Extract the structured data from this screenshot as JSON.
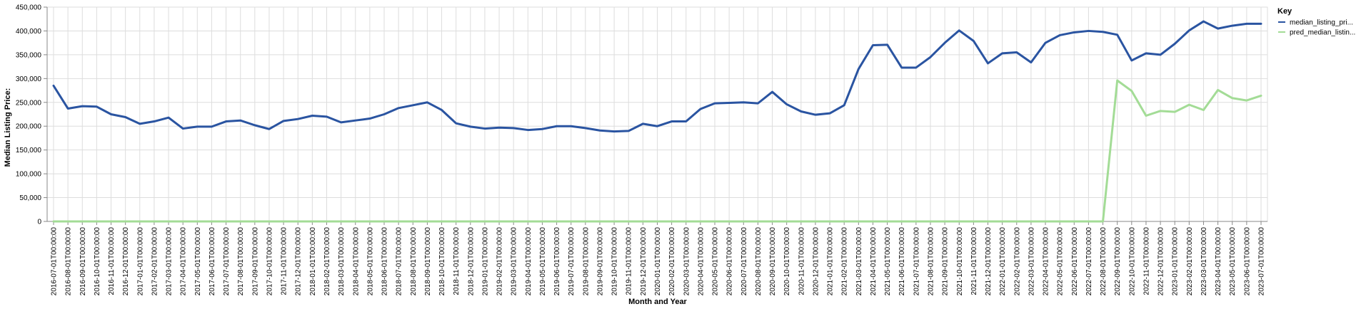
{
  "chart_data": {
    "type": "line",
    "xlabel": "Month and Year",
    "ylabel": "Median Listing Price:",
    "ylim": [
      0,
      450000
    ],
    "yticks": [
      0,
      50000,
      100000,
      150000,
      200000,
      250000,
      300000,
      350000,
      400000,
      450000
    ],
    "ytick_labels": [
      "0",
      "50,000",
      "100,000",
      "150,000",
      "200,000",
      "250,000",
      "300,000",
      "350,000",
      "400,000",
      "450,000"
    ],
    "grid": true,
    "legend": {
      "title": "Key",
      "placement": "top-right"
    },
    "x": [
      "2016-07-01T00:00:00",
      "2016-08-01T00:00:00",
      "2016-09-01T00:00:00",
      "2016-10-01T00:00:00",
      "2016-11-01T00:00:00",
      "2016-12-01T00:00:00",
      "2017-01-01T00:00:00",
      "2017-02-01T00:00:00",
      "2017-03-01T00:00:00",
      "2017-04-01T00:00:00",
      "2017-05-01T00:00:00",
      "2017-06-01T00:00:00",
      "2017-07-01T00:00:00",
      "2017-08-01T00:00:00",
      "2017-09-01T00:00:00",
      "2017-10-01T00:00:00",
      "2017-11-01T00:00:00",
      "2017-12-01T00:00:00",
      "2018-01-01T00:00:00",
      "2018-02-01T00:00:00",
      "2018-03-01T00:00:00",
      "2018-04-01T00:00:00",
      "2018-05-01T00:00:00",
      "2018-06-01T00:00:00",
      "2018-07-01T00:00:00",
      "2018-08-01T00:00:00",
      "2018-09-01T00:00:00",
      "2018-10-01T00:00:00",
      "2018-11-01T00:00:00",
      "2018-12-01T00:00:00",
      "2019-01-01T00:00:00",
      "2019-02-01T00:00:00",
      "2019-03-01T00:00:00",
      "2019-04-01T00:00:00",
      "2019-05-01T00:00:00",
      "2019-06-01T00:00:00",
      "2019-07-01T00:00:00",
      "2019-08-01T00:00:00",
      "2019-09-01T00:00:00",
      "2019-10-01T00:00:00",
      "2019-11-01T00:00:00",
      "2019-12-01T00:00:00",
      "2020-01-01T00:00:00",
      "2020-02-01T00:00:00",
      "2020-03-01T00:00:00",
      "2020-04-01T00:00:00",
      "2020-05-01T00:00:00",
      "2020-06-01T00:00:00",
      "2020-07-01T00:00:00",
      "2020-08-01T00:00:00",
      "2020-09-01T00:00:00",
      "2020-10-01T00:00:00",
      "2020-11-01T00:00:00",
      "2020-12-01T00:00:00",
      "2021-01-01T00:00:00",
      "2021-02-01T00:00:00",
      "2021-03-01T00:00:00",
      "2021-04-01T00:00:00",
      "2021-05-01T00:00:00",
      "2021-06-01T00:00:00",
      "2021-07-01T00:00:00",
      "2021-08-01T00:00:00",
      "2021-09-01T00:00:00",
      "2021-10-01T00:00:00",
      "2021-11-01T00:00:00",
      "2021-12-01T00:00:00",
      "2022-01-01T00:00:00",
      "2022-02-01T00:00:00",
      "2022-03-01T00:00:00",
      "2022-04-01T00:00:00",
      "2022-05-01T00:00:00",
      "2022-06-01T00:00:00",
      "2022-07-01T00:00:00",
      "2022-08-01T00:00:00",
      "2022-09-01T00:00:00",
      "2022-10-01T00:00:00",
      "2022-11-01T00:00:00",
      "2022-12-01T00:00:00",
      "2023-01-01T00:00:00",
      "2023-02-01T00:00:00",
      "2023-03-01T00:00:00",
      "2023-04-01T00:00:00",
      "2023-05-01T00:00:00",
      "2023-06-01T00:00:00",
      "2023-07-01T00:00:00"
    ],
    "series": [
      {
        "name": "median_listing_pri...",
        "color": "#2a54a1",
        "values": [
          285000,
          237000,
          242000,
          241000,
          225000,
          219000,
          205000,
          210000,
          218000,
          195000,
          199000,
          199000,
          210000,
          212000,
          202000,
          194000,
          211000,
          215000,
          222000,
          220000,
          208000,
          212000,
          216000,
          225000,
          238000,
          244000,
          250000,
          234000,
          206000,
          199000,
          195000,
          197000,
          196000,
          192000,
          194000,
          200000,
          200000,
          196000,
          191000,
          189000,
          190000,
          205000,
          200000,
          210000,
          210000,
          236000,
          248000,
          249000,
          250000,
          248000,
          272000,
          246000,
          231000,
          224000,
          227000,
          244000,
          320000,
          370000,
          371000,
          323000,
          323000,
          345000,
          375000,
          401000,
          379000,
          332000,
          353000,
          355000,
          334000,
          375000,
          391000,
          397000,
          400000,
          398000,
          392000,
          338000,
          353000,
          350000,
          373000,
          401000,
          420000,
          405000,
          411000,
          415000,
          415000
        ]
      },
      {
        "name": "pred_median_listin...",
        "color": "#a3dc96",
        "values": [
          0,
          0,
          0,
          0,
          0,
          0,
          0,
          0,
          0,
          0,
          0,
          0,
          0,
          0,
          0,
          0,
          0,
          0,
          0,
          0,
          0,
          0,
          0,
          0,
          0,
          0,
          0,
          0,
          0,
          0,
          0,
          0,
          0,
          0,
          0,
          0,
          0,
          0,
          0,
          0,
          0,
          0,
          0,
          0,
          0,
          0,
          0,
          0,
          0,
          0,
          0,
          0,
          0,
          0,
          0,
          0,
          0,
          0,
          0,
          0,
          0,
          0,
          0,
          0,
          0,
          0,
          0,
          0,
          0,
          0,
          0,
          0,
          0,
          0,
          296000,
          274000,
          222000,
          232000,
          230000,
          245000,
          234000,
          276000,
          259000,
          254000,
          264000
        ]
      }
    ]
  }
}
